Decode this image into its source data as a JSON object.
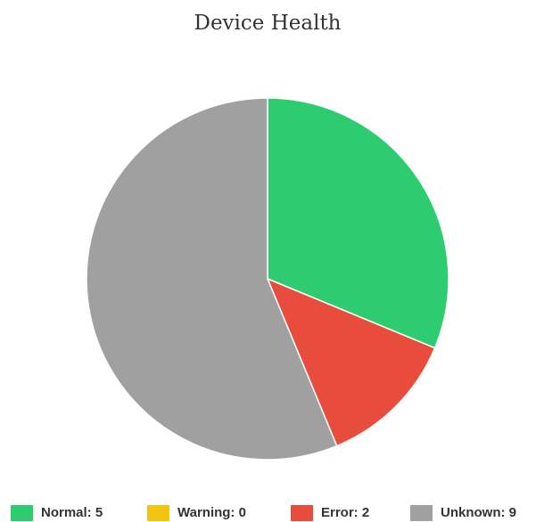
{
  "chart_data": {
    "type": "pie",
    "title": "Device Health",
    "values": [
      5,
      0,
      2,
      9
    ],
    "value_labels": [
      "Normal: 5",
      "Warning: 0",
      "Error: 2",
      "Unknown: 9"
    ],
    "colors": [
      "#2ecc71",
      "#f1c40f",
      "#e74c3c",
      "#a0a0a0"
    ],
    "legend": "bottom"
  }
}
